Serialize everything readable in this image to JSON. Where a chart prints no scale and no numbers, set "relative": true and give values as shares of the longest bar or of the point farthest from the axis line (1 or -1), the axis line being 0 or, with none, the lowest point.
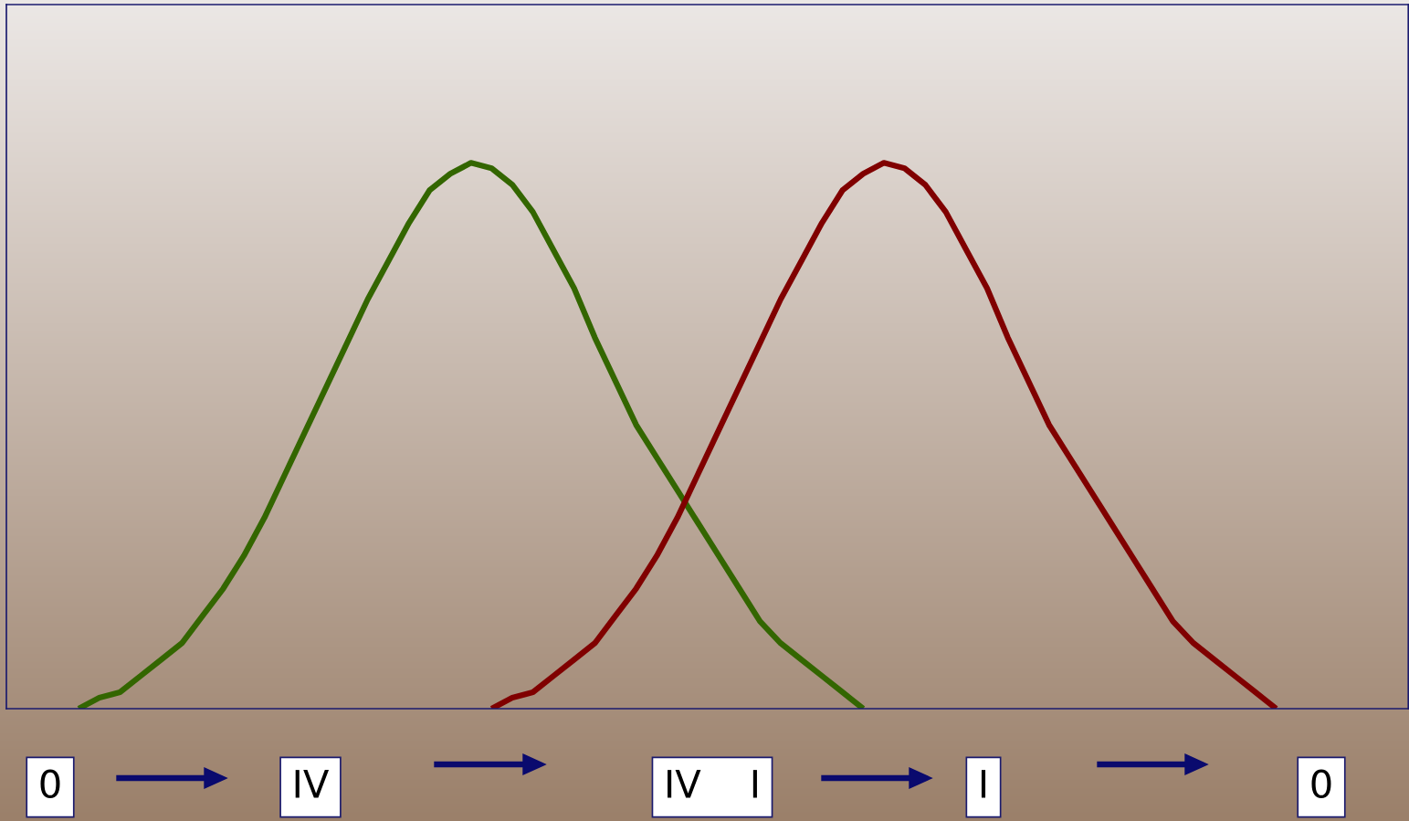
{
  "chart_data": {
    "type": "line",
    "relative": true,
    "grid": false,
    "legend": false,
    "categories": [
      null,
      null,
      null,
      null,
      null,
      null,
      null,
      null,
      null,
      null,
      null,
      null,
      null,
      null,
      null,
      null,
      null,
      null,
      null,
      null,
      null,
      null,
      null,
      null,
      null,
      null,
      null,
      null,
      null,
      null,
      null,
      null,
      null,
      null,
      null,
      null,
      null,
      null,
      null,
      null,
      null,
      null,
      null,
      null,
      null,
      null,
      null,
      null,
      null,
      null,
      null,
      null,
      null,
      null,
      null,
      null,
      null,
      null,
      null
    ],
    "series": [
      {
        "color": "#336600",
        "values": [
          0.0,
          0.02,
          0.03,
          0.06,
          0.09,
          0.12,
          0.17,
          0.22,
          0.28,
          0.35,
          0.43,
          0.51,
          0.59,
          0.67,
          0.75,
          0.82,
          0.89,
          0.95,
          0.98,
          1.0,
          0.99,
          0.96,
          0.91,
          0.84,
          0.77,
          0.68,
          0.6,
          0.52,
          0.46,
          0.4,
          0.34,
          0.28,
          0.22,
          0.16,
          0.12,
          0.09,
          0.06,
          0.03,
          0.0,
          null,
          null,
          null,
          null,
          null,
          null,
          null,
          null,
          null,
          null,
          null,
          null,
          null,
          null,
          null,
          null,
          null,
          null,
          null,
          null
        ]
      },
      {
        "color": "#800000",
        "values": [
          null,
          null,
          null,
          null,
          null,
          null,
          null,
          null,
          null,
          null,
          null,
          null,
          null,
          null,
          null,
          null,
          null,
          null,
          null,
          null,
          0.0,
          0.02,
          0.03,
          0.06,
          0.09,
          0.12,
          0.17,
          0.22,
          0.28,
          0.35,
          0.43,
          0.51,
          0.59,
          0.67,
          0.75,
          0.82,
          0.89,
          0.95,
          0.98,
          1.0,
          0.99,
          0.96,
          0.91,
          0.84,
          0.77,
          0.68,
          0.6,
          0.52,
          0.46,
          0.4,
          0.34,
          0.28,
          0.22,
          0.16,
          0.12,
          0.09,
          0.06,
          0.03,
          0.0
        ]
      }
    ],
    "annotations": [
      "0",
      "IV",
      "IV I",
      "I",
      "0"
    ]
  }
}
